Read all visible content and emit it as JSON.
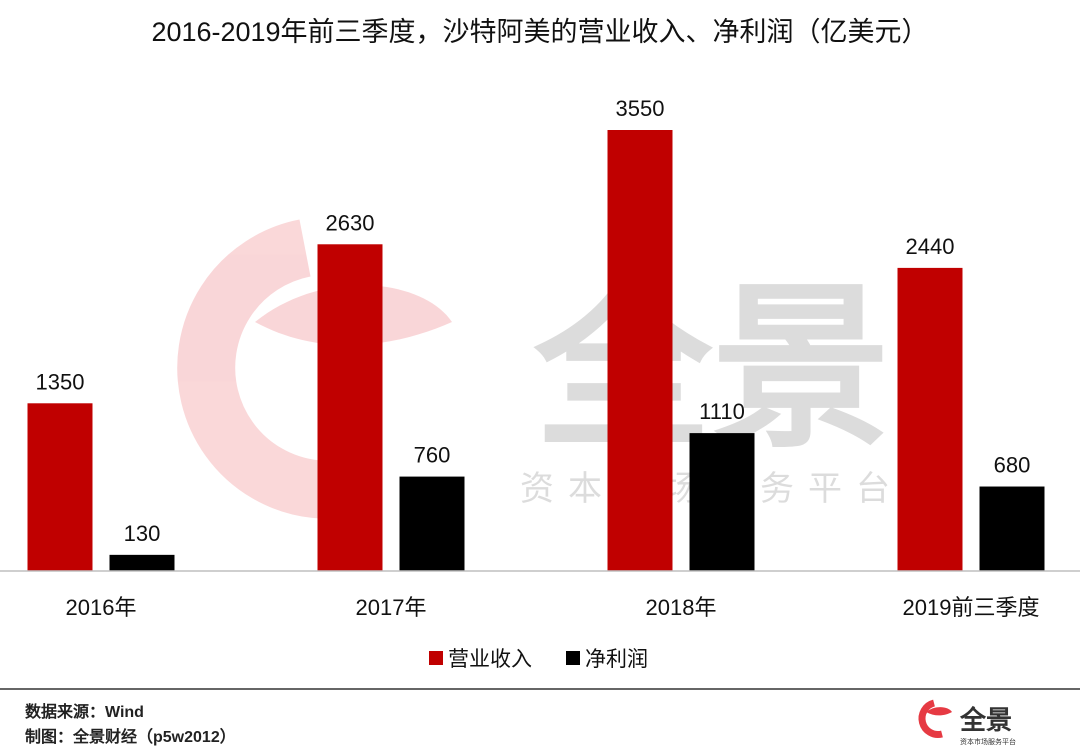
{
  "chart_data": {
    "type": "bar",
    "title": "2016-2019年前三季度，沙特阿美的营业收入、净利润（亿美元）",
    "categories": [
      "2016年",
      "2017年",
      "2018年",
      "2019前三季度"
    ],
    "series": [
      {
        "name": "营业收入",
        "values": [
          1350,
          2630,
          3550,
          2440
        ],
        "color": "#c00000"
      },
      {
        "name": "净利润",
        "values": [
          130,
          760,
          1110,
          680
        ],
        "color": "#000000"
      }
    ],
    "ylim": [
      0,
      3550
    ],
    "grid": false,
    "legend_position": "bottom-center"
  },
  "watermark": {
    "brand": "全景",
    "slogan": "资本市场服务平台",
    "logo_icon": "quanjing-e-logo-icon",
    "color": "#e8585f"
  },
  "footer": {
    "source": "数据来源：Wind",
    "credit": "制图：全景财经（p5w2012）",
    "logo_text": "全景",
    "logo_sub": "资本市场服务平台",
    "logo_icon": "quanjing-e-logo-icon"
  }
}
